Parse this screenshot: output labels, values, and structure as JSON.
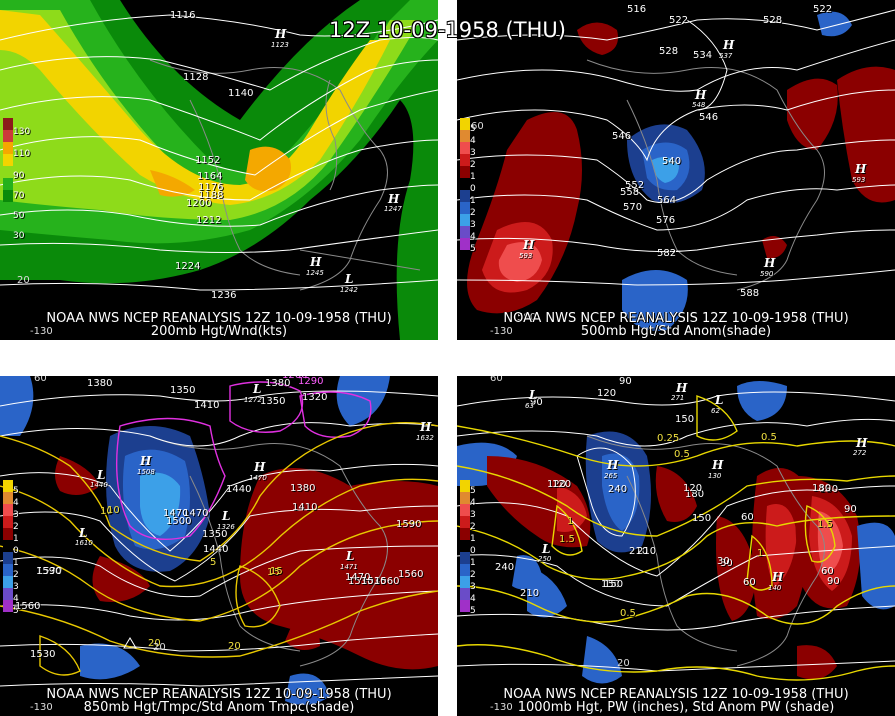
{
  "title": "12Z 10-09-1958 (THU)",
  "panels": [
    {
      "caption1": "NOAA NWS NCEP REANALYSIS 12Z 10-09-1958 (THU)",
      "caption2": "200mb Hgt/Wnd(kts)",
      "colorbar": [
        "130",
        "110",
        "90",
        "70",
        "50",
        "30"
      ],
      "contour_labels": [
        "1116",
        "1128",
        "1140",
        "1152",
        "1164",
        "1176",
        "1188",
        "1200",
        "1212",
        "1224",
        "1236"
      ],
      "highs": [
        {
          "v": "1123"
        },
        {
          "v": "1247"
        },
        {
          "v": "1245"
        }
      ],
      "lows": [
        {
          "v": "1242"
        }
      ],
      "edge_labels": [
        "20",
        "-130"
      ]
    },
    {
      "caption1": "NOAA NWS NCEP REANALYSIS 12Z 10-09-1958 (THU)",
      "caption2": "500mb Hgt/Std Anom(shade)",
      "colorbar": [
        "5",
        "4",
        "3",
        "2",
        "1",
        "0",
        "1",
        "2",
        "3",
        "4",
        "5"
      ],
      "contour_labels": [
        "516",
        "522",
        "528",
        "522",
        "528",
        "534",
        "546",
        "540",
        "552",
        "558",
        "564",
        "570",
        "576",
        "582",
        "588",
        "546"
      ],
      "highs": [
        {
          "v": "537"
        },
        {
          "v": "548"
        },
        {
          "v": "593"
        },
        {
          "v": "593"
        },
        {
          "v": "590"
        }
      ],
      "edge_labels": [
        "60",
        "-130",
        "590"
      ]
    },
    {
      "caption1": "NOAA NWS NCEP REANALYSIS 12Z 10-09-1958 (THU)",
      "caption2": "850mb Hgt/Tmpc/Std Anom Tmpc(shade)",
      "colorbar": [
        "5",
        "4",
        "3",
        "2",
        "1",
        "0",
        "1",
        "2",
        "3",
        "4",
        "5"
      ],
      "contour_labels": [
        "1320",
        "1380",
        "1350",
        "1410",
        "1350",
        "1380",
        "1320",
        "1260",
        "1290",
        "1440",
        "1470",
        "1470",
        "1500",
        "1410",
        "1380",
        "1350",
        "1440",
        "1530",
        "1560",
        "1590",
        "1590",
        "1530",
        "1530",
        "1560",
        "1470",
        "1530",
        "1560"
      ],
      "temp_labels": [
        "10",
        "5",
        "15",
        "20",
        "20",
        "10",
        "15"
      ],
      "highs": [
        {
          "v": "1508"
        },
        {
          "v": "1470"
        },
        {
          "v": "1632"
        }
      ],
      "lows": [
        {
          "v": "1440"
        },
        {
          "v": "1326"
        },
        {
          "v": "1272"
        },
        {
          "v": "1471"
        },
        {
          "v": "1610"
        }
      ],
      "edge_labels": [
        "60",
        "-130",
        "20"
      ]
    },
    {
      "caption1": "NOAA NWS NCEP REANALYSIS 12Z 10-09-1958 (THU)",
      "caption2": "1000mb Hgt, PW (inches), Std Anom PW (shade)",
      "colorbar": [
        "5",
        "4",
        "3",
        "2",
        "1",
        "0",
        "1",
        "2",
        "3",
        "4",
        "5"
      ],
      "contour_labels": [
        "90",
        "90",
        "120",
        "150",
        "120",
        "240",
        "210",
        "180",
        "150",
        "180",
        "120",
        "240",
        "210",
        "150",
        "60",
        "90",
        "60",
        "30",
        "180",
        "210",
        "60",
        "90",
        "30",
        "150",
        "120"
      ],
      "pw_labels": [
        "0.25",
        "0.5",
        "1",
        "1.5",
        "0.5",
        "0.5",
        "1.5",
        "1"
      ],
      "highs": [
        {
          "v": "265"
        },
        {
          "v": "272"
        },
        {
          "v": "140"
        },
        {
          "v": "130"
        },
        {
          "v": "271"
        }
      ],
      "lows": [
        {
          "v": "62"
        },
        {
          "v": "250"
        },
        {
          "v": "63"
        }
      ],
      "edge_labels": [
        "60",
        "-130",
        "20"
      ]
    }
  ],
  "colors": {
    "jet_green_dark": "#0a8a0a",
    "jet_green": "#26b21c",
    "jet_lime": "#8edb1a",
    "jet_yellow": "#f2d400",
    "jet_orange": "#f4a800",
    "anom_red_dark": "#8b0000",
    "anom_red": "#cc1b1b",
    "anom_red_light": "#ef4d4d",
    "anom_blue_dark": "#1c3f8f",
    "anom_blue": "#2a64c8",
    "anom_blue_light": "#3ca0e8",
    "contour_white": "#ffffff",
    "temp_magenta": "#e030e0",
    "pw_yellow": "#e8d800"
  }
}
